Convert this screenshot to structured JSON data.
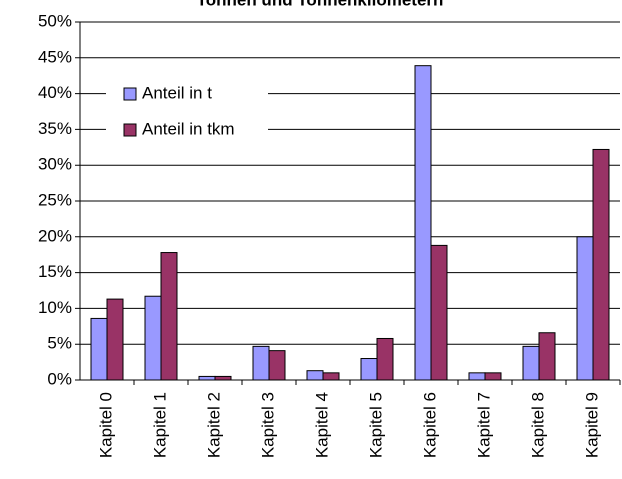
{
  "chart_data": {
    "type": "bar",
    "title": "Tonnen und Tonnenkilometern",
    "categories": [
      "Kapitel 0",
      "Kapitel 1",
      "Kapitel 2",
      "Kapitel 3",
      "Kapitel 4",
      "Kapitel 5",
      "Kapitel 6",
      "Kapitel 7",
      "Kapitel 8",
      "Kapitel 9"
    ],
    "series": [
      {
        "name": "Anteil in t",
        "color": "#9999ff",
        "values": [
          8.6,
          11.7,
          0.5,
          4.7,
          1.3,
          3.0,
          43.9,
          1.0,
          4.7,
          20.0
        ]
      },
      {
        "name": "Anteil in tkm",
        "color": "#993366",
        "values": [
          11.3,
          17.8,
          0.5,
          4.1,
          1.0,
          5.8,
          18.8,
          1.0,
          6.6,
          32.2
        ]
      }
    ],
    "ylim": [
      0,
      50
    ],
    "yticks": [
      {
        "value": 0,
        "label": "0%"
      },
      {
        "value": 5,
        "label": "5%"
      },
      {
        "value": 10,
        "label": "10%"
      },
      {
        "value": 15,
        "label": "15%"
      },
      {
        "value": 20,
        "label": "20%"
      },
      {
        "value": 25,
        "label": "25%"
      },
      {
        "value": 30,
        "label": "30%"
      },
      {
        "value": 35,
        "label": "35%"
      },
      {
        "value": 40,
        "label": "40%"
      },
      {
        "value": 45,
        "label": "45%"
      },
      {
        "value": 50,
        "label": "50%"
      }
    ],
    "grid": true,
    "legend": "upper left"
  }
}
